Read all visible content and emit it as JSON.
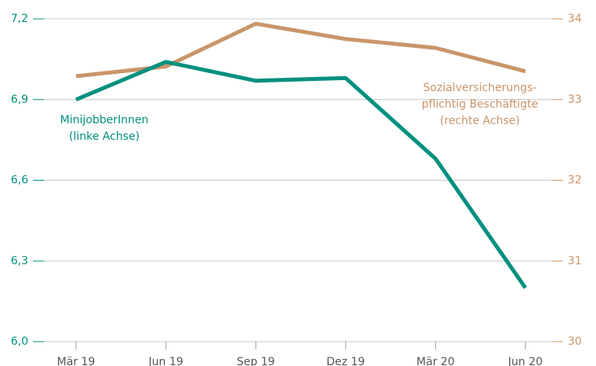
{
  "chart_data": {
    "type": "line",
    "categories": [
      "Mär 19",
      "Jun 19",
      "Sep 19",
      "Dez 19",
      "Mär 20",
      "Jun 20"
    ],
    "series": [
      {
        "color": "#00907f",
        "values": [
          6.9,
          7.04,
          6.97,
          6.98,
          6.68,
          6.2
        ]
      },
      {
        "color": "#c9956a",
        "values": [
          33.29,
          33.41,
          33.94,
          33.75,
          33.64,
          33.35
        ],
        "axis": "y2"
      }
    ],
    "annotations": [
      {
        "lines": [
          "MinijobberInnen",
          "(linke Achse)"
        ]
      },
      {
        "lines": [
          "Sozialversicherungs-",
          "pflichtig Beschäftigte",
          "(rechte Achse)"
        ]
      }
    ],
    "ylim": [
      6.0,
      7.2
    ],
    "yticks": [
      {
        "value": 6.0,
        "label": "6,0"
      },
      {
        "value": 6.3,
        "label": "6,3"
      },
      {
        "value": 6.6,
        "label": "6,6"
      },
      {
        "value": 6.9,
        "label": "6,9"
      },
      {
        "value": 7.2,
        "label": "7,2"
      }
    ],
    "y2lim": [
      30,
      34
    ],
    "y2ticks": [
      30,
      31,
      32,
      33,
      34
    ],
    "grid": true
  }
}
